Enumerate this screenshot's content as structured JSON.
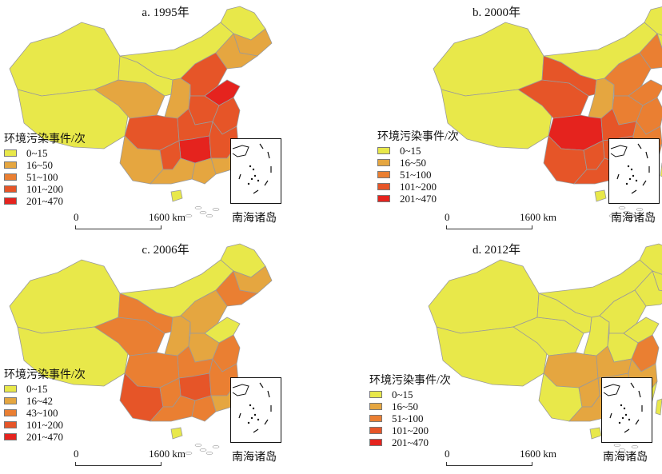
{
  "colors": {
    "class1": "#e8e84a",
    "class2": "#e5a640",
    "class3": "#ea7f32",
    "class4": "#e65528",
    "class5": "#e5231e",
    "border": "#9a9a9a"
  },
  "legend_title": "环境污染事件/次",
  "scale": {
    "zero": "0",
    "distance": "1600 km"
  },
  "inset_label": "南海诸岛",
  "panels": [
    {
      "title": "a. 1995年",
      "legend": [
        "0~15",
        "16~50",
        "51~100",
        "101~200",
        "201~470"
      ]
    },
    {
      "title": "b. 2000年",
      "legend": [
        "0~15",
        "16~50",
        "51~100",
        "101~200",
        "201~470"
      ]
    },
    {
      "title": "c. 2006年",
      "legend": [
        "0~15",
        "16~42",
        "43~100",
        "101~200",
        "201~470"
      ]
    },
    {
      "title": "d. 2012年",
      "legend": [
        "0~15",
        "16~50",
        "51~100",
        "101~200",
        "201~470"
      ]
    }
  ],
  "chart_data": {
    "type": "choropleth-map",
    "class_index": {
      "xinjiang": [
        1,
        1,
        1,
        1
      ],
      "tibet": [
        1,
        1,
        1,
        1
      ],
      "qinghai": [
        2,
        4,
        3,
        1
      ],
      "gansu": [
        1,
        4,
        3,
        1
      ],
      "inner_mongolia": [
        1,
        1,
        1,
        1
      ],
      "heilongjiang": [
        1,
        1,
        1,
        1
      ],
      "jilin": [
        2,
        1,
        2,
        1
      ],
      "liaoning": [
        2,
        3,
        3,
        1
      ],
      "ningxia_shaanxi": [
        2,
        2,
        2,
        1
      ],
      "shanxi_hebei": [
        4,
        3,
        2,
        1
      ],
      "shandong": [
        5,
        3,
        1,
        1
      ],
      "henan": [
        4,
        3,
        2,
        1
      ],
      "jiangsu_anhui": [
        4,
        3,
        3,
        3
      ],
      "sichuan": [
        4,
        5,
        3,
        2
      ],
      "chongqing_hubei": [
        4,
        4,
        3,
        2
      ],
      "hunan": [
        5,
        4,
        4,
        2
      ],
      "jiangxi_zhejiang": [
        4,
        3,
        3,
        2
      ],
      "fujian": [
        2,
        3,
        2,
        1
      ],
      "yunnan": [
        2,
        4,
        4,
        1
      ],
      "guizhou": [
        4,
        4,
        3,
        2
      ],
      "guangxi": [
        2,
        4,
        3,
        2
      ],
      "guangdong": [
        2,
        4,
        3,
        2
      ],
      "hainan": [
        1,
        1,
        1,
        1
      ],
      "taiwan": [
        1,
        1,
        1,
        1
      ]
    }
  }
}
